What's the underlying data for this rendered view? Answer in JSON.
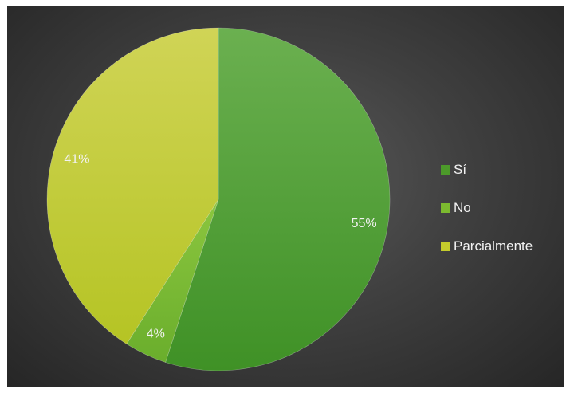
{
  "chart_data": {
    "type": "pie",
    "title": "",
    "slices": [
      {
        "label": "Sí",
        "value": 55,
        "display": "55%",
        "color": "#4c9a2a"
      },
      {
        "label": "No",
        "value": 4,
        "display": "4%",
        "color": "#7cba2f"
      },
      {
        "label": "Parcialmente",
        "value": 41,
        "display": "41%",
        "color": "#c4cc2c"
      }
    ],
    "legend_position": "right"
  }
}
